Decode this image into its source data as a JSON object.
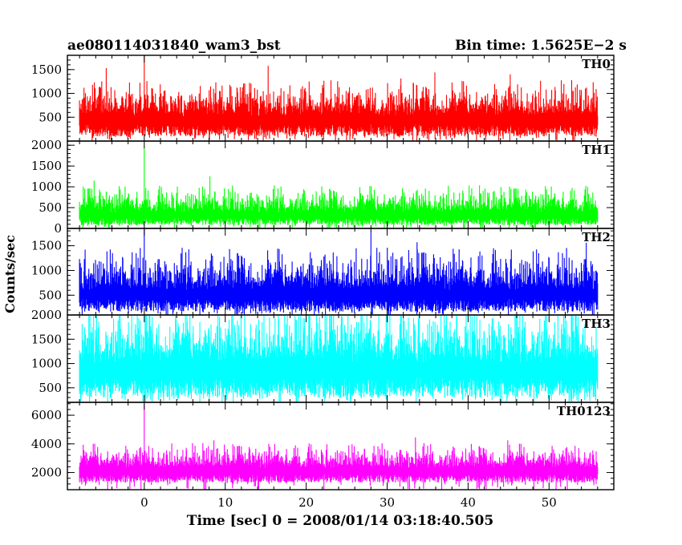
{
  "chart_data": {
    "type": "line",
    "title_left": "ae080114031840_wam3_bst",
    "title_right": "Bin time: 1.5625E−2 s",
    "xlabel": "Time [sec] 0 = 2008/01/14 03:18:40.505",
    "ylabel": "Counts/sec",
    "xlim": [
      -9.5,
      58
    ],
    "x_start": -8,
    "x_end": 56,
    "x_ticks": [
      0,
      10,
      20,
      30,
      40,
      50
    ],
    "x_tick_labels": [
      "0",
      "10",
      "20",
      "30",
      "40",
      "50"
    ],
    "panels": [
      {
        "name": "TH0",
        "color": "#ff0000",
        "ylim": [
          0,
          1800
        ],
        "y_ticks": [
          500,
          1000,
          1500
        ],
        "y_tick_labels": [
          "500",
          "1000",
          "1500"
        ],
        "baseline": 100,
        "mean": 520,
        "typical_max": 1050,
        "peaks": [
          {
            "x": -4.7,
            "y": 1530
          },
          {
            "x": 0.0,
            "y": 1800
          },
          {
            "x": 15.3,
            "y": 1580
          },
          {
            "x": 35.9,
            "y": 1440
          },
          {
            "x": 45.2,
            "y": 1400
          }
        ]
      },
      {
        "name": "TH1",
        "color": "#00ff00",
        "ylim": [
          0,
          2100
        ],
        "y_ticks": [
          0,
          500,
          1000,
          1500,
          2000
        ],
        "y_tick_labels": [
          "0",
          "500",
          "1000",
          "1500",
          "2000"
        ],
        "baseline": 80,
        "mean": 380,
        "typical_max": 900,
        "peaks": [
          {
            "x": -6.2,
            "y": 1150
          },
          {
            "x": 0.0,
            "y": 1950
          },
          {
            "x": 8.1,
            "y": 1250
          }
        ]
      },
      {
        "name": "TH2",
        "color": "#0000ff",
        "ylim": [
          100,
          1850
        ],
        "y_ticks": [
          500,
          1000,
          1500
        ],
        "y_tick_labels": [
          "500",
          "1000",
          "1500"
        ],
        "baseline": 170,
        "mean": 600,
        "typical_max": 1250,
        "peaks": [
          {
            "x": 0.0,
            "y": 1850
          },
          {
            "x": 28.0,
            "y": 1800
          },
          {
            "x": 33.7,
            "y": 1570
          },
          {
            "x": 54.6,
            "y": 1560
          }
        ]
      },
      {
        "name": "TH3",
        "color": "#00ffff",
        "ylim": [
          200,
          2000
        ],
        "y_ticks": [
          500,
          1000,
          1500,
          2000
        ],
        "y_tick_labels": [
          "500",
          "1000",
          "1500",
          "2000"
        ],
        "baseline": 300,
        "mean": 1000,
        "typical_max": 1900,
        "peaks": [
          {
            "x": 20.4,
            "y": 2000
          },
          {
            "x": 46.1,
            "y": 2000
          }
        ]
      },
      {
        "name": "TH0123",
        "color": "#ff00ff",
        "ylim": [
          800,
          6900
        ],
        "y_ticks": [
          2000,
          4000,
          6000
        ],
        "y_tick_labels": [
          "2000",
          "4000",
          "6000"
        ],
        "baseline": 1300,
        "mean": 2300,
        "typical_max": 3500,
        "peaks": [
          {
            "x": 0.0,
            "y": 6800
          },
          {
            "x": 8.6,
            "y": 4250
          },
          {
            "x": 33.5,
            "y": 4450
          },
          {
            "x": 44.9,
            "y": 4250
          }
        ]
      }
    ]
  }
}
